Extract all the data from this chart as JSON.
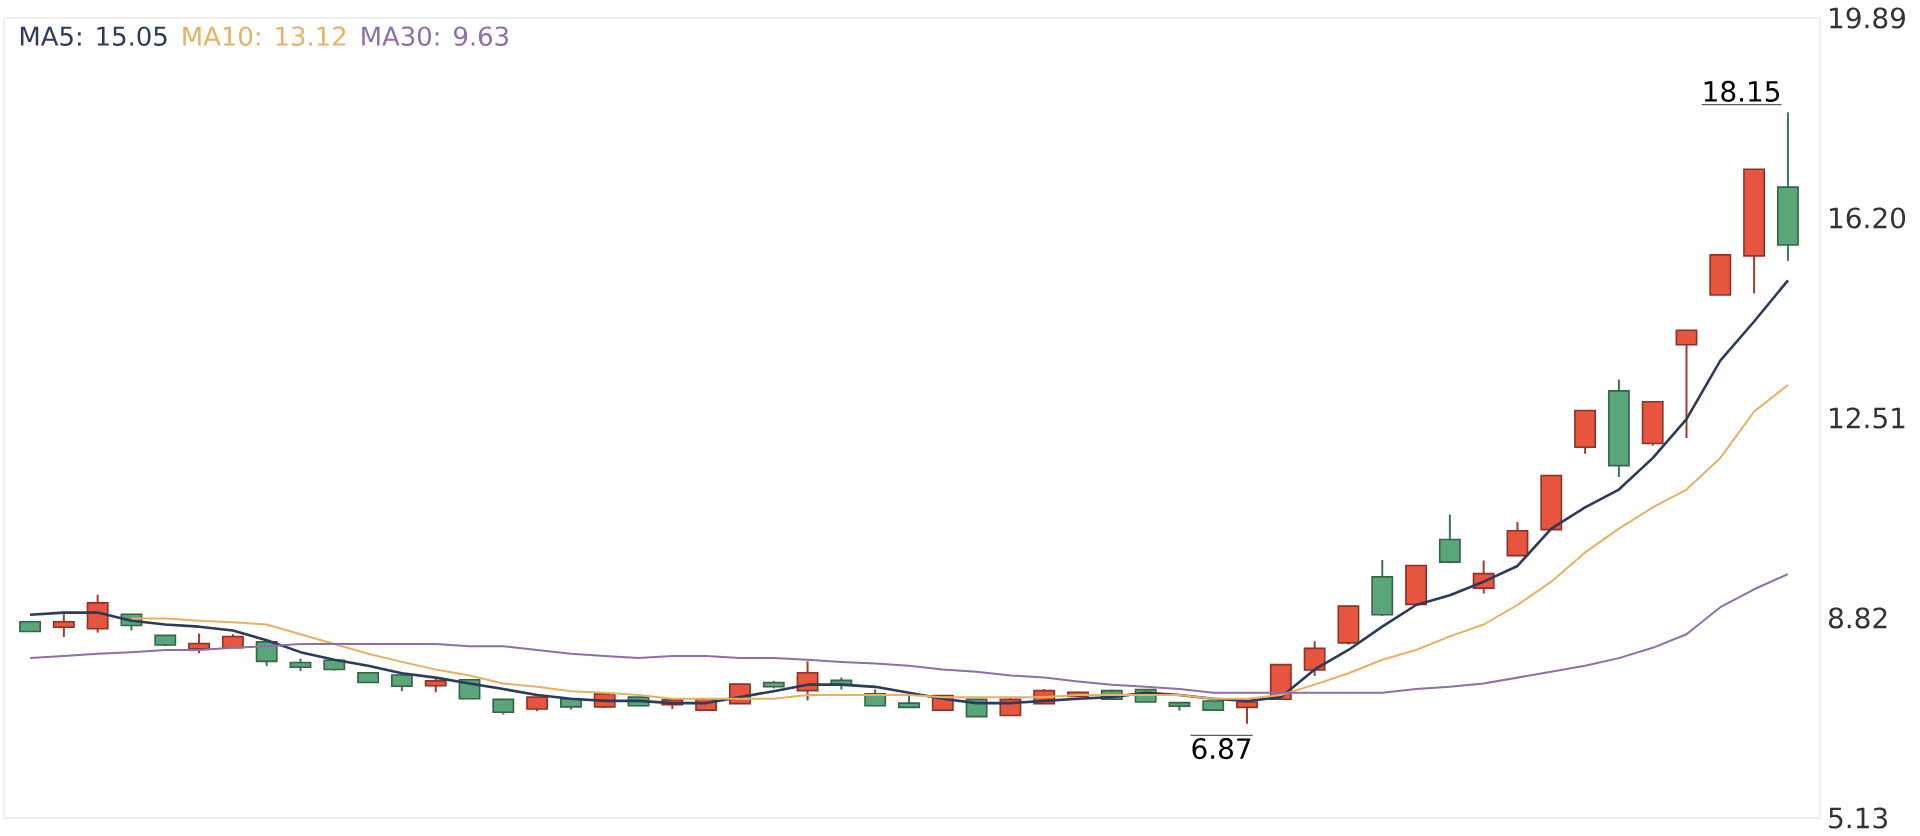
{
  "chart_data": {
    "type": "candlestick",
    "categories": [
      null,
      null,
      null,
      null,
      null,
      null,
      null,
      null,
      null,
      null,
      null,
      null,
      null,
      null,
      null,
      null,
      null,
      null,
      null,
      null,
      null,
      null,
      null,
      null,
      null,
      null,
      null,
      null,
      null,
      null,
      null,
      null,
      null,
      null,
      null,
      null,
      null,
      null,
      null,
      null,
      null,
      null,
      null,
      null,
      null,
      null,
      null,
      null,
      null,
      null,
      null,
      null,
      null
    ],
    "ohlc": [
      [
        8.72,
        8.76,
        8.56,
        8.6
      ],
      [
        8.68,
        8.89,
        8.47,
        8.72
      ],
      [
        8.65,
        9.25,
        8.55,
        9.07
      ],
      [
        8.86,
        8.9,
        8.59,
        8.71
      ],
      [
        8.47,
        8.49,
        8.3,
        8.35
      ],
      [
        8.28,
        8.53,
        8.17,
        8.32
      ],
      [
        8.3,
        8.52,
        8.27,
        8.45
      ],
      [
        8.35,
        8.38,
        7.93,
        8.05
      ],
      [
        7.97,
        8.07,
        7.84,
        7.94
      ],
      [
        8.01,
        8.05,
        7.85,
        7.9
      ],
      [
        7.78,
        7.82,
        7.64,
        7.66
      ],
      [
        7.74,
        7.78,
        7.47,
        7.59
      ],
      [
        7.6,
        7.72,
        7.45,
        7.63
      ],
      [
        7.65,
        7.7,
        7.34,
        7.36
      ],
      [
        7.29,
        7.33,
        7.04,
        7.11
      ],
      [
        7.17,
        7.36,
        7.1,
        7.33
      ],
      [
        7.3,
        7.33,
        7.13,
        7.21
      ],
      [
        7.21,
        7.42,
        7.16,
        7.39
      ],
      [
        7.33,
        7.35,
        7.2,
        7.23
      ],
      [
        7.25,
        7.33,
        7.14,
        7.28
      ],
      [
        7.15,
        7.33,
        7.12,
        7.3
      ],
      [
        7.27,
        7.6,
        7.25,
        7.57
      ],
      [
        7.6,
        7.66,
        7.52,
        7.58
      ],
      [
        7.51,
        8.02,
        7.3,
        7.78
      ],
      [
        7.64,
        7.72,
        7.5,
        7.61
      ],
      [
        7.39,
        7.5,
        7.2,
        7.23
      ],
      [
        7.22,
        7.39,
        7.18,
        7.2
      ],
      [
        7.15,
        7.4,
        7.12,
        7.36
      ],
      [
        7.29,
        7.32,
        7.0,
        7.03
      ],
      [
        7.05,
        7.36,
        7.02,
        7.29
      ],
      [
        7.27,
        7.51,
        7.25,
        7.45
      ],
      [
        7.4,
        7.46,
        7.38,
        7.42
      ],
      [
        7.45,
        7.5,
        7.33,
        7.35
      ],
      [
        7.47,
        7.5,
        7.28,
        7.3
      ],
      [
        7.23,
        7.25,
        7.11,
        7.22
      ],
      [
        7.26,
        7.29,
        7.13,
        7.15
      ],
      [
        7.2,
        7.26,
        6.87,
        7.24
      ],
      [
        7.35,
        7.93,
        7.35,
        7.93
      ],
      [
        7.89,
        8.39,
        7.75,
        8.23
      ],
      [
        8.39,
        9.01,
        8.33,
        9.01
      ],
      [
        9.55,
        9.89,
        8.86,
        8.91
      ],
      [
        9.1,
        9.76,
        9.08,
        9.76
      ],
      [
        10.24,
        10.73,
        9.83,
        9.88
      ],
      [
        9.4,
        9.88,
        9.27,
        9.61
      ],
      [
        10.0,
        10.59,
        10.0,
        10.4
      ],
      [
        10.48,
        11.42,
        10.48,
        11.42
      ],
      [
        12.0,
        12.62,
        11.85,
        12.62
      ],
      [
        12.98,
        13.22,
        11.42,
        11.66
      ],
      [
        12.07,
        12.78,
        12.0,
        12.78
      ],
      [
        13.89,
        14.1,
        12.14,
        14.1
      ],
      [
        14.81,
        15.49,
        14.81,
        15.49
      ],
      [
        15.53,
        17.07,
        14.81,
        17.07
      ],
      [
        16.74,
        18.15,
        15.41,
        15.73
      ]
    ],
    "colors": [
      "#5aa57a",
      "#e8553f",
      "#e8553f",
      "#5aa57a",
      "#5aa57a",
      "#e8553f",
      "#e8553f",
      "#5aa57a",
      "#5aa57a",
      "#5aa57a",
      "#5aa57a",
      "#5aa57a",
      "#e8553f",
      "#5aa57a",
      "#5aa57a",
      "#e8553f",
      "#5aa57a",
      "#e8553f",
      "#5aa57a",
      "#e8553f",
      "#e8553f",
      "#e8553f",
      "#5aa57a",
      "#e8553f",
      "#5aa57a",
      "#5aa57a",
      "#5aa57a",
      "#e8553f",
      "#5aa57a",
      "#e8553f",
      "#e8553f",
      "#e8553f",
      "#5aa57a",
      "#5aa57a",
      "#5aa57a",
      "#5aa57a",
      "#e8553f",
      "#e8553f",
      "#e8553f",
      "#e8553f",
      "#5aa57a",
      "#e8553f",
      "#5aa57a",
      "#e8553f",
      "#e8553f",
      "#e8553f",
      "#e8553f",
      "#5aa57a",
      "#e8553f",
      "#e8553f",
      "#e8553f",
      "#e8553f",
      "#5aa57a"
    ],
    "series": [
      {
        "name": "MA5: 15.05",
        "type": "line",
        "color": "#2a3b5c",
        "values": [
          8.88,
          8.92,
          8.92,
          8.77,
          8.7,
          8.66,
          8.59,
          8.41,
          8.19,
          8.05,
          7.94,
          7.8,
          7.72,
          7.61,
          7.51,
          7.4,
          7.33,
          7.29,
          7.29,
          7.25,
          7.25,
          7.36,
          7.47,
          7.59,
          7.59,
          7.55,
          7.44,
          7.33,
          7.25,
          7.25,
          7.29,
          7.33,
          7.36,
          7.44,
          7.4,
          7.33,
          7.29,
          7.36,
          7.87,
          8.23,
          8.66,
          9.06,
          9.24,
          9.49,
          9.78,
          10.47,
          10.86,
          11.19,
          11.77,
          12.49,
          13.57,
          14.29,
          15.05
        ]
      },
      {
        "name": "MA10: 13.12",
        "type": "line",
        "color": "#e8b062",
        "values": [
          null,
          null,
          null,
          8.81,
          8.81,
          8.77,
          8.74,
          8.7,
          8.52,
          8.34,
          8.16,
          8.01,
          7.87,
          7.76,
          7.61,
          7.55,
          7.47,
          7.44,
          7.4,
          7.33,
          7.33,
          7.33,
          7.33,
          7.4,
          7.4,
          7.4,
          7.4,
          7.36,
          7.36,
          7.36,
          7.36,
          7.4,
          7.4,
          7.4,
          7.4,
          7.33,
          7.33,
          7.4,
          7.59,
          7.8,
          8.05,
          8.23,
          8.48,
          8.7,
          9.06,
          9.49,
          10.03,
          10.47,
          10.86,
          11.19,
          11.77,
          12.63,
          13.12
        ]
      },
      {
        "name": "MA30: 9.63",
        "type": "line",
        "color": "#8e6fa8",
        "values": [
          8.08,
          8.12,
          8.16,
          8.19,
          8.23,
          8.23,
          8.27,
          8.3,
          8.34,
          8.34,
          8.34,
          8.34,
          8.34,
          8.3,
          8.3,
          8.23,
          8.16,
          8.12,
          8.08,
          8.12,
          8.12,
          8.08,
          8.08,
          8.05,
          8.01,
          7.98,
          7.94,
          7.87,
          7.83,
          7.76,
          7.72,
          7.65,
          7.59,
          7.55,
          7.51,
          7.44,
          7.44,
          7.44,
          7.44,
          7.44,
          7.44,
          7.51,
          7.55,
          7.61,
          7.72,
          7.83,
          7.94,
          8.08,
          8.27,
          8.52,
          9.02,
          9.35,
          9.63
        ]
      }
    ],
    "ylim": [
      5.13,
      19.89
    ],
    "yticks": [
      5.13,
      8.82,
      12.51,
      {
        "value": 16.2,
        "label": "16.20"
      },
      19.89
    ],
    "annotations": [
      "18.15",
      "6.87"
    ],
    "legend": "top left",
    "marker": "none",
    "line_style": "solid",
    "grid": false
  }
}
